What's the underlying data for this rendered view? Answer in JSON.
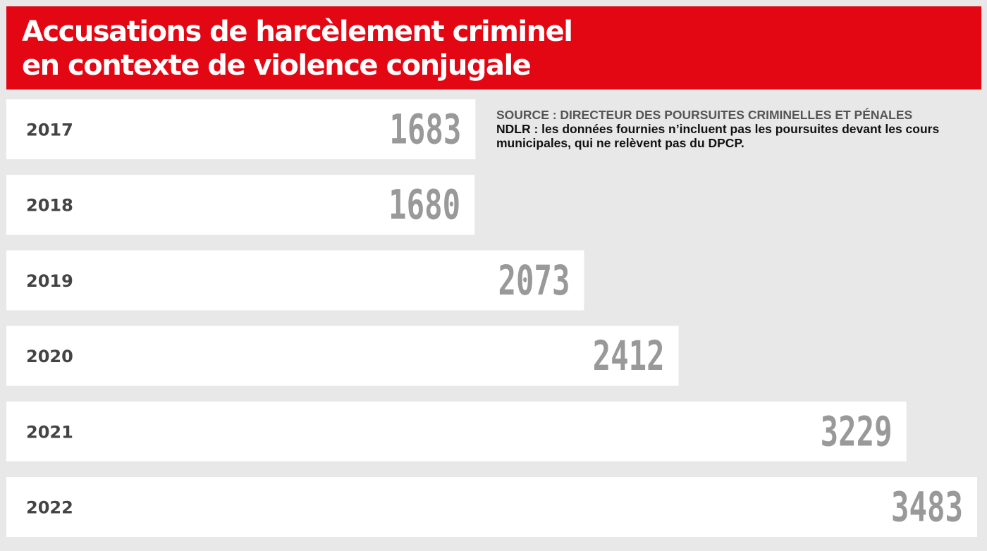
{
  "header": {
    "title_line1": "Accusations de harcèlement criminel",
    "title_line2": "en contexte de violence conjugale"
  },
  "notes": {
    "source": "SOURCE : DIRECTEUR DES POURSUITES CRIMINELLES ET PÉNALES",
    "ndlr": "NDLR : les données fournies n’incluent pas les poursuites devant les cours municipales, qui ne relèvent pas du DPCP."
  },
  "colors": {
    "accent": "#e30613",
    "background": "#e8e8e8",
    "bar": "#ffffff",
    "value_text": "#999999",
    "year_text": "#444444"
  },
  "chart_data": {
    "type": "bar",
    "orientation": "horizontal",
    "categories": [
      "2017",
      "2018",
      "2019",
      "2020",
      "2021",
      "2022"
    ],
    "values": [
      1683,
      1680,
      2073,
      2412,
      3229,
      3483
    ],
    "title": "Accusations de harcèlement criminel en contexte de violence conjugale",
    "xlabel": "",
    "ylabel": "",
    "grid": false,
    "legend": "none"
  }
}
